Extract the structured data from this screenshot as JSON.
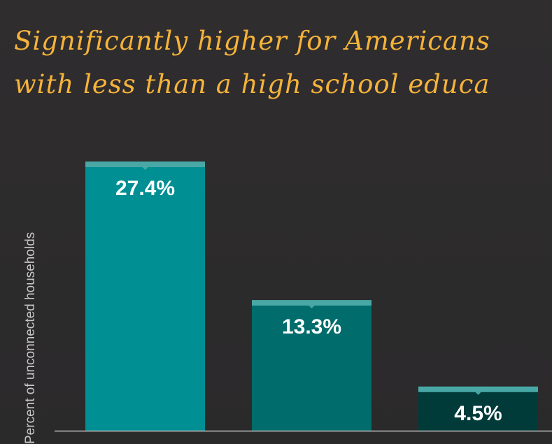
{
  "chart_data": {
    "type": "bar",
    "title_lines": [
      "Significantly higher for Americans",
      "with less than a high school educa"
    ],
    "ylabel": "Percent of unconnected households",
    "xlabel": "",
    "values": [
      27.4,
      13.3,
      4.5
    ],
    "data_labels": [
      "27.4%",
      "13.3%",
      "4.5%"
    ],
    "colors": [
      "#008f93",
      "#006c6c",
      "#003b3a"
    ],
    "cap_color": "#49a8a6",
    "ylim": [
      0,
      27.4
    ],
    "grid": false,
    "legend": "none"
  }
}
